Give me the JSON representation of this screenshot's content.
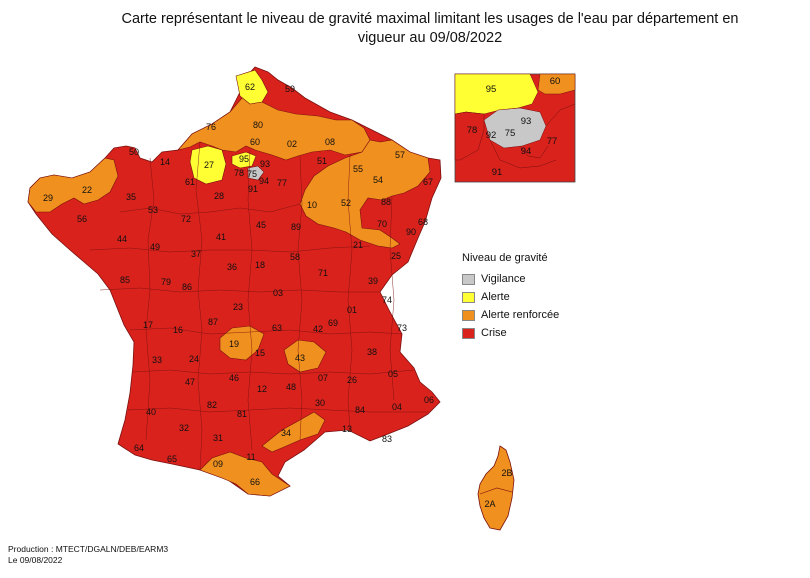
{
  "title": "Carte représentant le niveau de gravité maximal limitant les usages de l'eau par département en vigueur au 09/08/2022",
  "colors": {
    "vigilance": "#c8c8c8",
    "alerte": "#ffff33",
    "alerte_renforcee": "#f0901e",
    "crise": "#d9221c",
    "border": "#7a1010"
  },
  "legend": {
    "title": "Niveau de gravité",
    "items": [
      {
        "label": "Vigilance",
        "color_key": "vigilance"
      },
      {
        "label": "Alerte",
        "color_key": "alerte"
      },
      {
        "label": "Alerte renforcée",
        "color_key": "alerte_renforcee"
      },
      {
        "label": "Crise",
        "color_key": "crise"
      }
    ]
  },
  "footer": {
    "line1": "Production : MTECT/DGALN/DEB/EARM3",
    "line2": "Le 09/08/2022"
  },
  "departements": [
    {
      "code": "62",
      "level": "alerte"
    },
    {
      "code": "59",
      "level": "crise"
    },
    {
      "code": "76",
      "level": "alerte_renforcee"
    },
    {
      "code": "80",
      "level": "alerte_renforcee"
    },
    {
      "code": "60",
      "level": "alerte_renforcee"
    },
    {
      "code": "02",
      "level": "alerte_renforcee"
    },
    {
      "code": "08",
      "level": "alerte_renforcee"
    },
    {
      "code": "51",
      "level": "alerte_renforcee"
    },
    {
      "code": "55",
      "level": "alerte_renforcee"
    },
    {
      "code": "57",
      "level": "alerte_renforcee"
    },
    {
      "code": "67",
      "level": "crise"
    },
    {
      "code": "54",
      "level": "alerte_renforcee"
    },
    {
      "code": "88",
      "level": "crise"
    },
    {
      "code": "68",
      "level": "crise"
    },
    {
      "code": "50",
      "level": "crise"
    },
    {
      "code": "14",
      "level": "crise"
    },
    {
      "code": "27",
      "level": "alerte"
    },
    {
      "code": "95",
      "level": "alerte"
    },
    {
      "code": "93",
      "level": "vigilance"
    },
    {
      "code": "78",
      "level": "crise"
    },
    {
      "code": "75",
      "level": "vigilance"
    },
    {
      "code": "94",
      "level": "crise"
    },
    {
      "code": "77",
      "level": "crise"
    },
    {
      "code": "91",
      "level": "crise"
    },
    {
      "code": "61",
      "level": "crise"
    },
    {
      "code": "28",
      "level": "crise"
    },
    {
      "code": "10",
      "level": "alerte_renforcee"
    },
    {
      "code": "52",
      "level": "alerte_renforcee"
    },
    {
      "code": "70",
      "level": "alerte_renforcee"
    },
    {
      "code": "90",
      "level": "crise"
    },
    {
      "code": "29",
      "level": "alerte_renforcee"
    },
    {
      "code": "22",
      "level": "alerte_renforcee"
    },
    {
      "code": "56",
      "level": "crise"
    },
    {
      "code": "35",
      "level": "crise"
    },
    {
      "code": "53",
      "level": "crise"
    },
    {
      "code": "72",
      "level": "crise"
    },
    {
      "code": "45",
      "level": "crise"
    },
    {
      "code": "89",
      "level": "crise"
    },
    {
      "code": "21",
      "level": "crise"
    },
    {
      "code": "25",
      "level": "crise"
    },
    {
      "code": "44",
      "level": "crise"
    },
    {
      "code": "49",
      "level": "crise"
    },
    {
      "code": "37",
      "level": "crise"
    },
    {
      "code": "41",
      "level": "crise"
    },
    {
      "code": "18",
      "level": "crise"
    },
    {
      "code": "58",
      "level": "crise"
    },
    {
      "code": "71",
      "level": "crise"
    },
    {
      "code": "39",
      "level": "crise"
    },
    {
      "code": "85",
      "level": "crise"
    },
    {
      "code": "79",
      "level": "crise"
    },
    {
      "code": "86",
      "level": "crise"
    },
    {
      "code": "36",
      "level": "crise"
    },
    {
      "code": "03",
      "level": "crise"
    },
    {
      "code": "01",
      "level": "crise"
    },
    {
      "code": "74",
      "level": "crise"
    },
    {
      "code": "17",
      "level": "crise"
    },
    {
      "code": "16",
      "level": "crise"
    },
    {
      "code": "87",
      "level": "crise"
    },
    {
      "code": "23",
      "level": "crise"
    },
    {
      "code": "63",
      "level": "crise"
    },
    {
      "code": "42",
      "level": "crise"
    },
    {
      "code": "69",
      "level": "crise"
    },
    {
      "code": "73",
      "level": "crise"
    },
    {
      "code": "19",
      "level": "alerte_renforcee"
    },
    {
      "code": "15",
      "level": "crise"
    },
    {
      "code": "43",
      "level": "alerte_renforcee"
    },
    {
      "code": "38",
      "level": "crise"
    },
    {
      "code": "33",
      "level": "crise"
    },
    {
      "code": "24",
      "level": "crise"
    },
    {
      "code": "47",
      "level": "crise"
    },
    {
      "code": "46",
      "level": "crise"
    },
    {
      "code": "12",
      "level": "crise"
    },
    {
      "code": "48",
      "level": "crise"
    },
    {
      "code": "07",
      "level": "crise"
    },
    {
      "code": "26",
      "level": "crise"
    },
    {
      "code": "05",
      "level": "crise"
    },
    {
      "code": "40",
      "level": "crise"
    },
    {
      "code": "82",
      "level": "crise"
    },
    {
      "code": "81",
      "level": "crise"
    },
    {
      "code": "30",
      "level": "crise"
    },
    {
      "code": "84",
      "level": "crise"
    },
    {
      "code": "04",
      "level": "crise"
    },
    {
      "code": "06",
      "level": "crise"
    },
    {
      "code": "32",
      "level": "crise"
    },
    {
      "code": "34",
      "level": "alerte_renforcee"
    },
    {
      "code": "13",
      "level": "crise"
    },
    {
      "code": "83",
      "level": "crise"
    },
    {
      "code": "64",
      "level": "crise"
    },
    {
      "code": "65",
      "level": "crise"
    },
    {
      "code": "31",
      "level": "crise"
    },
    {
      "code": "11",
      "level": "crise"
    },
    {
      "code": "09",
      "level": "alerte_renforcee"
    },
    {
      "code": "66",
      "level": "alerte_renforcee"
    },
    {
      "code": "2B",
      "level": "alerte_renforcee"
    },
    {
      "code": "2A",
      "level": "alerte_renforcee"
    }
  ],
  "inset": {
    "departements": [
      {
        "code": "95",
        "level": "alerte"
      },
      {
        "code": "60",
        "level": "alerte_renforcee"
      },
      {
        "code": "93",
        "level": "vigilance"
      },
      {
        "code": "92",
        "level": "vigilance"
      },
      {
        "code": "75",
        "level": "vigilance"
      },
      {
        "code": "78",
        "level": "crise"
      },
      {
        "code": "77",
        "level": "crise"
      },
      {
        "code": "94",
        "level": "crise"
      },
      {
        "code": "91",
        "level": "crise"
      }
    ]
  }
}
